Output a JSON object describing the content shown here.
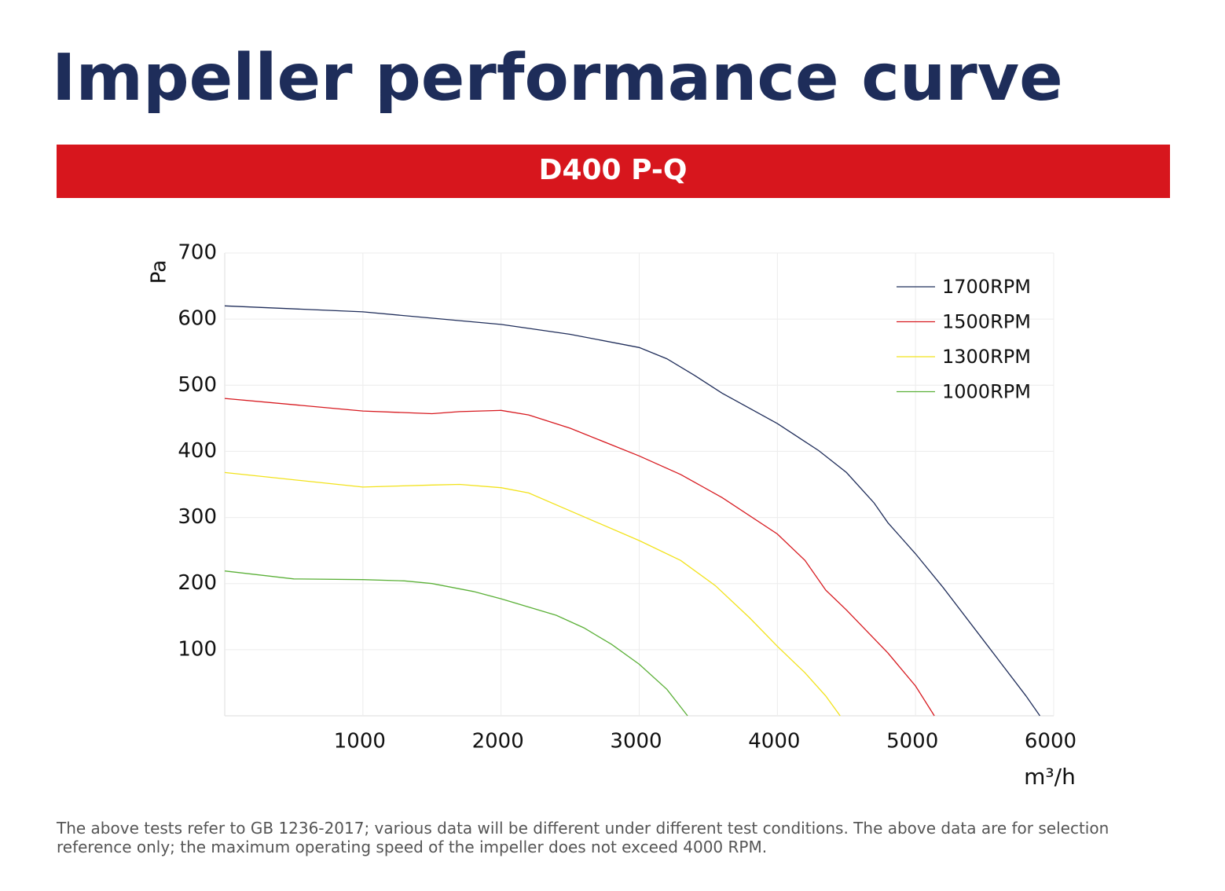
{
  "chart_data": {
    "type": "line",
    "title": "Impeller performance curve",
    "subtitle": "D400 P-Q",
    "xlabel": "m³/h",
    "ylabel": "Pa",
    "xlim": [
      0,
      6000
    ],
    "xticks": [
      1000,
      2000,
      3000,
      4000,
      5000,
      6000
    ],
    "ylim": [
      0,
      700
    ],
    "yticks": [
      100,
      200,
      300,
      400,
      500,
      600,
      700
    ],
    "grid": true,
    "legend": "upper right",
    "series": [
      {
        "name": "1700RPM",
        "color": "#1f2d5a",
        "x": [
          0,
          1000,
          2000,
          2500,
          3000,
          3200,
          3400,
          3600,
          4000,
          4300,
          4500,
          4700,
          4800,
          5000,
          5200,
          5500,
          5800,
          5900
        ],
        "values": [
          620,
          611,
          592,
          577,
          557,
          540,
          515,
          488,
          442,
          401,
          368,
          322,
          292,
          245,
          194,
          112,
          30,
          0
        ]
      },
      {
        "name": "1500RPM",
        "color": "#d7191f",
        "x": [
          0,
          1000,
          1500,
          1700,
          2000,
          2200,
          2500,
          3000,
          3300,
          3600,
          4000,
          4200,
          4350,
          4500,
          4800,
          5000,
          5136
        ],
        "values": [
          480,
          461,
          457,
          460,
          462,
          455,
          435,
          393,
          365,
          330,
          275,
          235,
          190,
          160,
          95,
          45,
          0
        ]
      },
      {
        "name": "1300RPM",
        "color": "#f2e21b",
        "x": [
          0,
          1000,
          1500,
          1700,
          2000,
          2200,
          2500,
          3000,
          3300,
          3550,
          3800,
          4000,
          4200,
          4350,
          4454
        ],
        "values": [
          368,
          346,
          349,
          350,
          345,
          337,
          310,
          265,
          235,
          197,
          148,
          105,
          65,
          30,
          0
        ]
      },
      {
        "name": "1000RPM",
        "color": "#5bb038",
        "x": [
          0,
          500,
          1000,
          1300,
          1500,
          1800,
          2000,
          2400,
          2600,
          2800,
          3000,
          3200,
          3350
        ],
        "values": [
          219,
          207,
          206,
          204,
          200,
          188,
          177,
          152,
          133,
          108,
          78,
          40,
          0
        ]
      }
    ]
  },
  "note": [
    "The above tests refer to GB 1236-2017; various data will be different under different test conditions. The above data are for selection",
    "reference only; the maximum operating speed of the impeller does not exceed 4000 RPM."
  ]
}
